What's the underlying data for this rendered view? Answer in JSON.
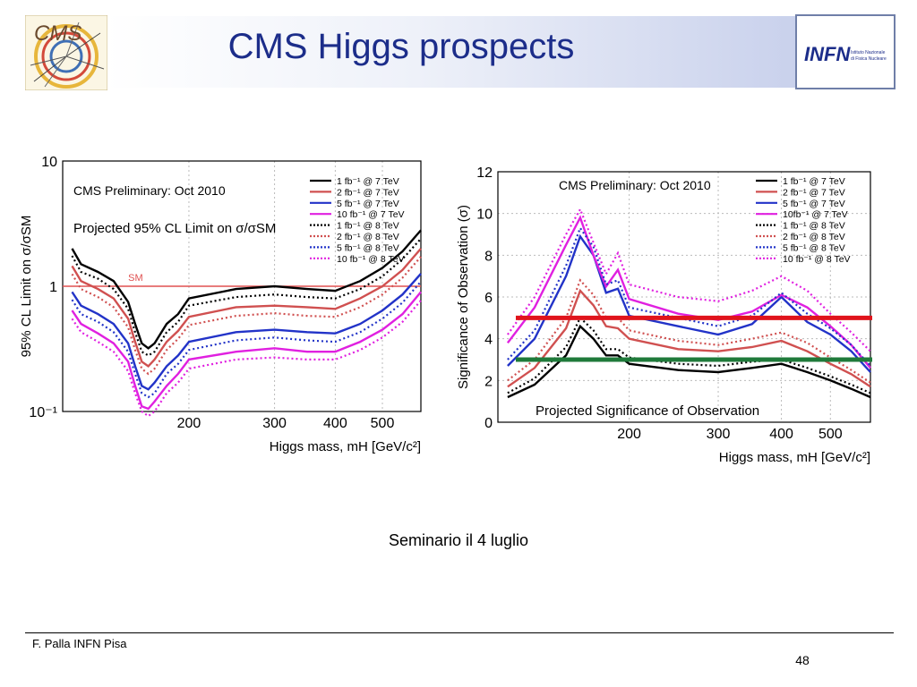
{
  "slide": {
    "title": "CMS Higgs prospects",
    "caption": "Seminario il 4 luglio",
    "author": "F. Palla INFN Pisa",
    "page_number": "48"
  },
  "logos": {
    "cms": {
      "text": "CMS",
      "icon": "cms-logo-icon"
    },
    "infn": {
      "text": "INFN",
      "subtext": "Istituto Nazionale di Fisica Nucleare",
      "icon": "infn-logo-icon"
    }
  },
  "colors": {
    "title": "#1c2d8a",
    "red_line": "#e0141c",
    "green_line": "#1f7a3a"
  },
  "chart_data": [
    {
      "type": "line",
      "title": "CMS Preliminary: Oct 2010",
      "subtitle": "Projected 95% CL Limit on σ/σSM",
      "xlabel": "Higgs mass, mH [GeV/c²]",
      "ylabel": "95% CL Limit on σ/σSM",
      "y_scale": "log",
      "xlim": [
        110,
        600
      ],
      "ylim": [
        0.1,
        10
      ],
      "x_ticks": [
        "200",
        "300",
        "400",
        "500"
      ],
      "y_ticks": [
        "10",
        "1",
        "10⁻¹"
      ],
      "grid": true,
      "legend_position": "top-right",
      "reference_line": {
        "label": "SM",
        "y": 1,
        "color": "#e05050"
      },
      "x": [
        115,
        120,
        130,
        140,
        150,
        155,
        160,
        165,
        170,
        180,
        190,
        200,
        250,
        300,
        350,
        400,
        450,
        500,
        550,
        600
      ],
      "series": [
        {
          "name": "1 fb⁻¹ @ 7 TeV",
          "color": "#000000",
          "dash": "solid",
          "values": [
            2.0,
            1.5,
            1.3,
            1.1,
            0.75,
            0.5,
            0.35,
            0.32,
            0.35,
            0.5,
            0.6,
            0.8,
            0.95,
            1.0,
            0.95,
            0.92,
            1.1,
            1.4,
            1.9,
            2.8
          ]
        },
        {
          "name": "2 fb⁻¹ @ 7 TeV",
          "color": "#d05050",
          "dash": "solid",
          "values": [
            1.45,
            1.1,
            0.95,
            0.8,
            0.55,
            0.36,
            0.25,
            0.23,
            0.26,
            0.36,
            0.44,
            0.57,
            0.68,
            0.7,
            0.68,
            0.66,
            0.8,
            1.0,
            1.35,
            2.0
          ]
        },
        {
          "name": "5 fb⁻¹ @ 7 TeV",
          "color": "#2233c8",
          "dash": "solid",
          "values": [
            0.9,
            0.7,
            0.6,
            0.5,
            0.35,
            0.23,
            0.16,
            0.15,
            0.17,
            0.23,
            0.28,
            0.36,
            0.43,
            0.45,
            0.43,
            0.42,
            0.5,
            0.64,
            0.86,
            1.26
          ]
        },
        {
          "name": "10 fb⁻¹ @ 7 TeV",
          "color": "#e020e0",
          "dash": "solid",
          "values": [
            0.64,
            0.5,
            0.42,
            0.35,
            0.25,
            0.16,
            0.11,
            0.105,
            0.12,
            0.16,
            0.2,
            0.26,
            0.3,
            0.32,
            0.3,
            0.3,
            0.36,
            0.45,
            0.6,
            0.9
          ]
        },
        {
          "name": "1 fb⁻¹ @ 8 TeV",
          "color": "#000000",
          "dash": "dotted",
          "values": [
            1.75,
            1.3,
            1.15,
            0.95,
            0.66,
            0.43,
            0.3,
            0.28,
            0.3,
            0.43,
            0.52,
            0.7,
            0.82,
            0.86,
            0.82,
            0.8,
            0.95,
            1.2,
            1.65,
            2.4
          ]
        },
        {
          "name": "2 fb⁻¹ @ 8 TeV",
          "color": "#d05050",
          "dash": "dotted",
          "values": [
            1.25,
            0.95,
            0.82,
            0.68,
            0.47,
            0.31,
            0.22,
            0.2,
            0.22,
            0.31,
            0.38,
            0.49,
            0.58,
            0.61,
            0.58,
            0.57,
            0.68,
            0.86,
            1.17,
            1.72
          ]
        },
        {
          "name": "5 fb⁻¹ @ 8 TeV",
          "color": "#2233c8",
          "dash": "dotted",
          "values": [
            0.78,
            0.6,
            0.52,
            0.43,
            0.3,
            0.2,
            0.14,
            0.13,
            0.14,
            0.2,
            0.24,
            0.31,
            0.37,
            0.39,
            0.37,
            0.36,
            0.43,
            0.55,
            0.74,
            1.09
          ]
        },
        {
          "name": "10 fb⁻¹ @ 8 TeV",
          "color": "#e020e0",
          "dash": "dotted",
          "values": [
            0.55,
            0.43,
            0.36,
            0.3,
            0.21,
            0.14,
            0.1,
            0.092,
            0.1,
            0.14,
            0.17,
            0.22,
            0.26,
            0.27,
            0.26,
            0.26,
            0.31,
            0.39,
            0.52,
            0.77
          ]
        }
      ]
    },
    {
      "type": "line",
      "title": "CMS Preliminary: Oct 2010",
      "subtitle": "Projected Significance of Observation",
      "xlabel": "Higgs mass, mH [GeV/c²]",
      "ylabel": "Significance of Observation (σ)",
      "xlim": [
        110,
        600
      ],
      "ylim": [
        0,
        12
      ],
      "x_ticks": [
        "200",
        "300",
        "400",
        "500"
      ],
      "y_ticks": [
        "0",
        "2",
        "4",
        "6",
        "8",
        "10",
        "12"
      ],
      "grid": true,
      "legend_position": "top-right",
      "overlay_lines": [
        {
          "y": 5,
          "color": "#e0141c"
        },
        {
          "y": 3,
          "color": "#1f7a3a"
        }
      ],
      "x": [
        115,
        130,
        150,
        160,
        170,
        180,
        190,
        200,
        250,
        300,
        350,
        400,
        450,
        500,
        550,
        600
      ],
      "series": [
        {
          "name": "1 fb⁻¹ @ 7 TeV",
          "color": "#000000",
          "dash": "solid",
          "values": [
            1.2,
            1.8,
            3.2,
            4.6,
            4.0,
            3.2,
            3.2,
            2.8,
            2.5,
            2.4,
            2.6,
            2.8,
            2.4,
            2.0,
            1.6,
            1.2
          ]
        },
        {
          "name": "2 fb⁻¹ @ 7 TeV",
          "color": "#d05050",
          "dash": "solid",
          "values": [
            1.7,
            2.6,
            4.5,
            6.3,
            5.6,
            4.6,
            4.5,
            4.0,
            3.5,
            3.4,
            3.6,
            3.9,
            3.4,
            2.8,
            2.3,
            1.7
          ]
        },
        {
          "name": "5 fb⁻¹ @ 7 TeV",
          "color": "#2233c8",
          "dash": "solid",
          "values": [
            2.7,
            4.0,
            7.0,
            8.9,
            8.0,
            6.2,
            6.4,
            5.1,
            4.6,
            4.2,
            4.7,
            6.0,
            4.8,
            4.2,
            3.4,
            2.4
          ]
        },
        {
          "name": "10fb⁻¹ @ 7 TeV",
          "color": "#e020e0",
          "dash": "solid",
          "values": [
            3.8,
            5.5,
            8.5,
            9.8,
            8.0,
            6.5,
            7.3,
            5.9,
            5.2,
            4.9,
            5.3,
            6.1,
            5.5,
            4.6,
            3.7,
            2.6
          ]
        },
        {
          "name": "1 fb⁻¹ @ 8 TeV",
          "color": "#000000",
          "dash": "dotted",
          "values": [
            1.4,
            2.1,
            3.6,
            5.0,
            4.4,
            3.5,
            3.5,
            3.1,
            2.8,
            2.7,
            2.9,
            3.0,
            2.6,
            2.2,
            1.8,
            1.4
          ]
        },
        {
          "name": "2 fb⁻¹ @ 8 TeV",
          "color": "#d05050",
          "dash": "dotted",
          "values": [
            2.0,
            3.0,
            5.0,
            6.8,
            6.1,
            5.0,
            5.0,
            4.4,
            3.9,
            3.7,
            4.0,
            4.3,
            3.8,
            3.1,
            2.5,
            1.9
          ]
        },
        {
          "name": "5 fb⁻¹ @ 8 TeV",
          "color": "#2233c8",
          "dash": "dotted",
          "values": [
            3.0,
            4.4,
            7.5,
            9.3,
            8.4,
            6.6,
            6.8,
            5.5,
            5.0,
            4.6,
            5.1,
            6.2,
            5.2,
            4.5,
            3.7,
            2.7
          ]
        },
        {
          "name": "10 fb⁻¹ @ 8 TeV",
          "color": "#e020e0",
          "dash": "dotted",
          "values": [
            4.2,
            6.0,
            9.0,
            10.2,
            8.6,
            7.1,
            8.1,
            6.6,
            6.0,
            5.8,
            6.3,
            7.0,
            6.3,
            5.2,
            4.3,
            3.4
          ]
        }
      ]
    }
  ]
}
